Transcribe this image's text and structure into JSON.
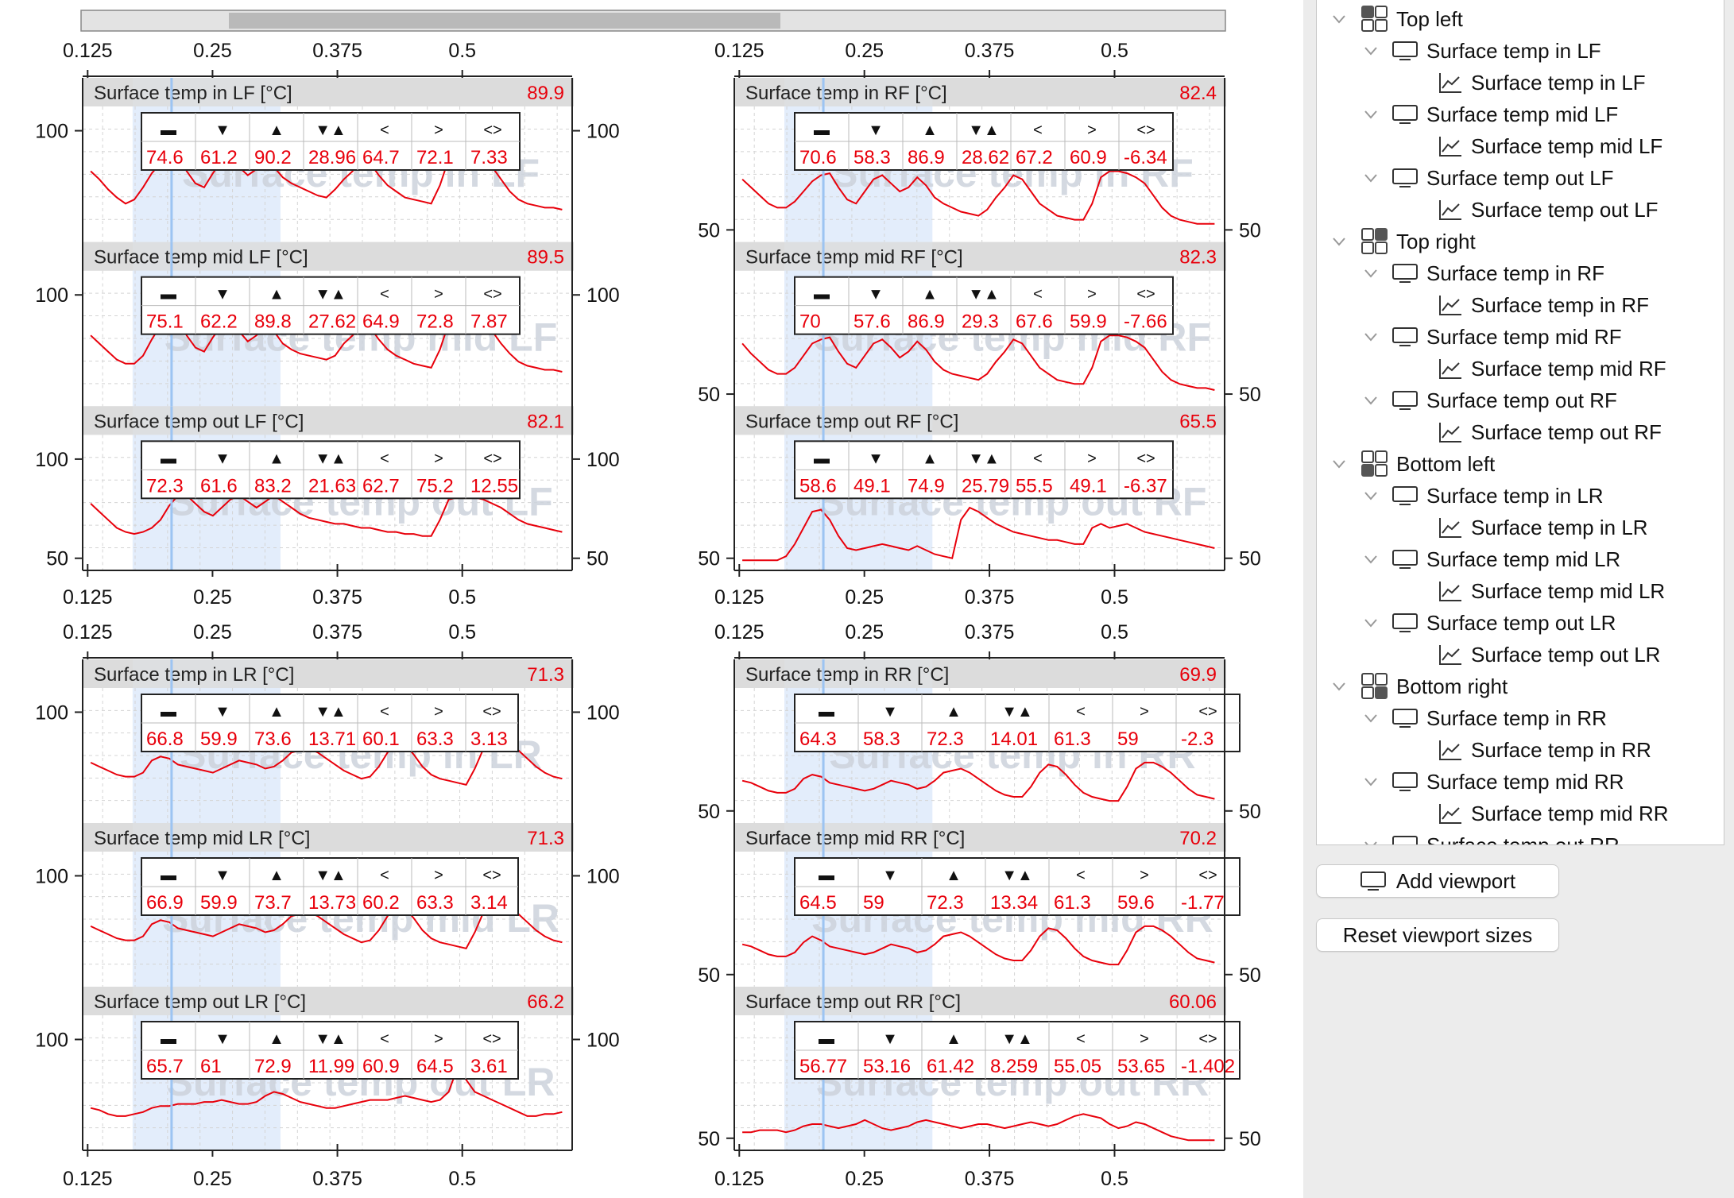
{
  "axis": {
    "x_ticks": [
      "0.125",
      "0.25",
      "0.375",
      "0.5"
    ],
    "y_left_ticks_left_col": [
      "100",
      "50"
    ],
    "y_ticks_right_col": [
      "50"
    ]
  },
  "stats_header": [
    "▬",
    "▼",
    "▲",
    "▼▲",
    "<",
    ">",
    "<>"
  ],
  "watermark_color": "#cdd3dc",
  "trace_color": "#e8000b",
  "value_color": "#e8000b",
  "highlight_color": "#e3edfb",
  "cursor_color": "#9cc4f2",
  "viewports": [
    {
      "name": "Top left",
      "plots": [
        {
          "title": "Surface temp in LF [°C]",
          "watermark": "Surface temp in LF",
          "current": "89.9",
          "stats": [
            "74.6",
            "61.2",
            "90.2",
            "28.96",
            "64.7",
            "72.1",
            "7.33"
          ],
          "y_ticks": [
            "100"
          ],
          "series": [
            80,
            76,
            71,
            67,
            64,
            66,
            72,
            79,
            84,
            87,
            88,
            80,
            74,
            72,
            79,
            85,
            86,
            82,
            78,
            81,
            86,
            82,
            77,
            74,
            72,
            70,
            68,
            67,
            71,
            76,
            80,
            86,
            84,
            78,
            73,
            70,
            67,
            66,
            65,
            64,
            73,
            86,
            88,
            89,
            87,
            85,
            82,
            76,
            70,
            66,
            64,
            63,
            62,
            62,
            61
          ]
        },
        {
          "title": "Surface temp mid LF [°C]",
          "watermark": "Surface temp mid LF",
          "current": "89.5",
          "stats": [
            "75.1",
            "62.2",
            "89.8",
            "27.62",
            "64.9",
            "72.8",
            "7.87"
          ],
          "y_ticks": [
            "100"
          ],
          "series": [
            80,
            76,
            72,
            68,
            66,
            66,
            70,
            78,
            85,
            87,
            88,
            80,
            74,
            72,
            79,
            85,
            86,
            82,
            77,
            80,
            86,
            82,
            76,
            73,
            71,
            70,
            69,
            68,
            70,
            76,
            80,
            86,
            84,
            78,
            73,
            70,
            68,
            66,
            65,
            64,
            73,
            86,
            88,
            89,
            87,
            85,
            82,
            76,
            71,
            67,
            65,
            64,
            63,
            63,
            62
          ]
        },
        {
          "title": "Surface temp out LF [°C]",
          "watermark": "Surface temp out LF",
          "current": "82.1",
          "stats": [
            "72.3",
            "61.6",
            "83.2",
            "21.63",
            "62.7",
            "75.2",
            "12.55"
          ],
          "y_ticks": [
            "100",
            "50"
          ],
          "series": [
            78,
            74,
            70,
            66,
            64,
            63,
            64,
            66,
            70,
            77,
            82,
            82,
            78,
            74,
            72,
            76,
            80,
            82,
            79,
            76,
            79,
            82,
            79,
            76,
            73,
            71,
            70,
            69,
            68,
            68,
            67,
            66,
            66,
            65,
            64,
            64,
            63,
            63,
            62,
            62,
            70,
            80,
            81,
            82,
            81,
            80,
            78,
            76,
            73,
            70,
            68,
            67,
            66,
            65,
            64
          ]
        }
      ]
    },
    {
      "name": "Top right",
      "plots": [
        {
          "title": "Surface temp in RF [°C]",
          "watermark": "Surface temp in RF",
          "current": "82.4",
          "stats": [
            "70.6",
            "58.3",
            "86.9",
            "28.62",
            "67.2",
            "60.9",
            "-6.34"
          ],
          "y_ticks": [
            "50"
          ],
          "series": [
            76,
            72,
            68,
            64,
            62,
            62,
            65,
            70,
            75,
            78,
            79,
            72,
            66,
            64,
            70,
            76,
            78,
            74,
            70,
            72,
            77,
            73,
            67,
            64,
            62,
            60,
            59,
            58,
            61,
            67,
            72,
            78,
            76,
            70,
            64,
            61,
            58,
            57,
            56,
            56,
            64,
            77,
            80,
            80,
            79,
            77,
            74,
            68,
            62,
            58,
            56,
            55,
            54,
            54,
            54
          ]
        },
        {
          "title": "Surface temp mid RF [°C]",
          "watermark": "Surface temp mid RF",
          "current": "82.3",
          "stats": [
            "70",
            "57.6",
            "86.9",
            "29.3",
            "67.6",
            "59.9",
            "-7.66"
          ],
          "y_ticks": [
            "50"
          ],
          "series": [
            76,
            71,
            67,
            63,
            61,
            61,
            64,
            70,
            76,
            78,
            79,
            72,
            66,
            64,
            70,
            76,
            78,
            74,
            69,
            72,
            77,
            73,
            67,
            63,
            61,
            60,
            59,
            58,
            61,
            67,
            72,
            78,
            76,
            70,
            64,
            61,
            58,
            57,
            56,
            56,
            64,
            77,
            80,
            80,
            79,
            77,
            74,
            68,
            62,
            58,
            56,
            55,
            54,
            54,
            53
          ]
        },
        {
          "title": "Surface temp out RF [°C]",
          "watermark": "Surface temp out RF",
          "current": "65.5",
          "stats": [
            "58.6",
            "49.1",
            "74.9",
            "25.79",
            "55.5",
            "49.1",
            "-6.37"
          ],
          "y_ticks": [
            "50"
          ],
          "series": [
            50,
            50,
            50,
            50,
            50,
            52,
            58,
            66,
            74,
            75,
            70,
            62,
            56,
            55,
            56,
            57,
            58,
            57,
            56,
            55,
            57,
            55,
            53,
            52,
            51,
            70,
            76,
            74,
            71,
            68,
            66,
            64,
            63,
            62,
            61,
            60,
            60,
            59,
            58,
            58,
            66,
            68,
            66,
            67,
            68,
            66,
            64,
            63,
            62,
            61,
            60,
            59,
            58,
            57,
            56
          ]
        }
      ]
    },
    {
      "name": "Bottom left",
      "plots": [
        {
          "title": "Surface temp in LR [°C]",
          "watermark": "Surface temp in LR",
          "current": "71.3",
          "stats": [
            "66.8",
            "59.9",
            "73.6",
            "13.71",
            "60.1",
            "63.3",
            "3.13"
          ],
          "y_ticks": [
            "100"
          ],
          "series": [
            75,
            73,
            71,
            69,
            68,
            68,
            70,
            76,
            78,
            77,
            74,
            73,
            72,
            71,
            70,
            72,
            74,
            76,
            75,
            74,
            72,
            73,
            76,
            80,
            81,
            82,
            80,
            77,
            74,
            71,
            69,
            67,
            68,
            73,
            80,
            85,
            84,
            79,
            73,
            69,
            67,
            66,
            65,
            64,
            72,
            82,
            85,
            86,
            84,
            81,
            77,
            73,
            70,
            68,
            67
          ]
        },
        {
          "title": "Surface temp mid LR [°C]",
          "watermark": "Surface temp mid LR",
          "current": "71.3",
          "stats": [
            "66.9",
            "59.9",
            "73.7",
            "13.73",
            "60.2",
            "63.3",
            "3.14"
          ],
          "y_ticks": [
            "100"
          ],
          "series": [
            75,
            73,
            71,
            69,
            68,
            68,
            70,
            76,
            78,
            77,
            74,
            73,
            72,
            71,
            70,
            72,
            74,
            76,
            75,
            74,
            72,
            73,
            76,
            80,
            81,
            82,
            80,
            77,
            74,
            71,
            69,
            67,
            68,
            73,
            80,
            85,
            84,
            79,
            73,
            69,
            67,
            66,
            65,
            64,
            72,
            82,
            85,
            86,
            84,
            81,
            77,
            73,
            70,
            68,
            67
          ]
        },
        {
          "title": "Surface temp out LR [°C]",
          "watermark": "Surface temp out LR",
          "current": "66.2",
          "stats": [
            "65.7",
            "61",
            "72.9",
            "11.99",
            "60.9",
            "64.5",
            "3.61"
          ],
          "y_ticks": [
            "100"
          ],
          "series": [
            66,
            65,
            63,
            62,
            62,
            63,
            64,
            66,
            67,
            67,
            68,
            68,
            68,
            69,
            69,
            70,
            69,
            68,
            68,
            69,
            72,
            74,
            73,
            71,
            69,
            68,
            67,
            66,
            66,
            67,
            68,
            69,
            70,
            70,
            70,
            71,
            72,
            71,
            70,
            69,
            70,
            74,
            86,
            80,
            74,
            72,
            70,
            68,
            66,
            64,
            62,
            62,
            63,
            63,
            64
          ]
        }
      ]
    },
    {
      "name": "Bottom right",
      "plots": [
        {
          "title": "Surface temp in RR [°C]",
          "watermark": "Surface temp in RR",
          "current": "69.9",
          "stats": [
            "64.3",
            "58.3",
            "72.3",
            "14.01",
            "61.3",
            "59",
            "-2.3"
          ],
          "y_ticks": [
            "50"
          ],
          "series": [
            66,
            65,
            63,
            61,
            60,
            60,
            62,
            67,
            69,
            68,
            65,
            64,
            63,
            62,
            61,
            62,
            64,
            66,
            65,
            64,
            62,
            63,
            66,
            70,
            71,
            72,
            70,
            67,
            64,
            61,
            59,
            58,
            58,
            63,
            70,
            74,
            73,
            69,
            64,
            60,
            58,
            57,
            56,
            56,
            63,
            72,
            75,
            75,
            73,
            70,
            66,
            62,
            59,
            58,
            57
          ]
        },
        {
          "title": "Surface temp mid RR [°C]",
          "watermark": "Surface temp mid RR",
          "current": "70.2",
          "stats": [
            "64.5",
            "59",
            "72.3",
            "13.34",
            "61.3",
            "59.6",
            "-1.77"
          ],
          "y_ticks": [
            "50"
          ],
          "series": [
            66,
            65,
            63,
            61,
            60,
            60,
            62,
            67,
            70,
            68,
            65,
            64,
            63,
            62,
            61,
            62,
            64,
            66,
            65,
            64,
            62,
            63,
            66,
            70,
            71,
            72,
            70,
            67,
            64,
            61,
            59,
            58,
            58,
            63,
            70,
            74,
            73,
            69,
            64,
            60,
            58,
            57,
            56,
            56,
            63,
            72,
            75,
            75,
            73,
            70,
            66,
            62,
            59,
            58,
            57
          ]
        },
        {
          "title": "Surface temp out RR [°C]",
          "watermark": "Surface temp out RR",
          "current": "60.06",
          "stats": [
            "56.77",
            "53.16",
            "61.42",
            "8.259",
            "55.05",
            "53.65",
            "-1.402"
          ],
          "y_ticks": [
            "50"
          ],
          "series": [
            54,
            54,
            55,
            55,
            55,
            54,
            55,
            57,
            58,
            58,
            57,
            56,
            57,
            58,
            60,
            58,
            56,
            55,
            56,
            57,
            59,
            60,
            59,
            58,
            57,
            56,
            57,
            58,
            58,
            57,
            56,
            57,
            58,
            59,
            58,
            57,
            58,
            60,
            62,
            63,
            62,
            61,
            58,
            56,
            57,
            59,
            58,
            56,
            54,
            52,
            51,
            50,
            50,
            50,
            50
          ]
        }
      ]
    }
  ],
  "sidebar": {
    "tree": [
      {
        "level": 0,
        "icon": "grid-tl-icon",
        "label": "Top left"
      },
      {
        "level": 1,
        "icon": "monitor-icon",
        "label": "Surface temp in LF"
      },
      {
        "level": 2,
        "icon": "chart-icon",
        "label": "Surface temp in LF"
      },
      {
        "level": 1,
        "icon": "monitor-icon",
        "label": "Surface temp mid LF"
      },
      {
        "level": 2,
        "icon": "chart-icon",
        "label": "Surface temp mid LF"
      },
      {
        "level": 1,
        "icon": "monitor-icon",
        "label": "Surface temp out LF"
      },
      {
        "level": 2,
        "icon": "chart-icon",
        "label": "Surface temp out LF"
      },
      {
        "level": 0,
        "icon": "grid-tr-icon",
        "label": "Top right"
      },
      {
        "level": 1,
        "icon": "monitor-icon",
        "label": "Surface temp in RF"
      },
      {
        "level": 2,
        "icon": "chart-icon",
        "label": "Surface temp in RF"
      },
      {
        "level": 1,
        "icon": "monitor-icon",
        "label": "Surface temp mid RF"
      },
      {
        "level": 2,
        "icon": "chart-icon",
        "label": "Surface temp mid RF"
      },
      {
        "level": 1,
        "icon": "monitor-icon",
        "label": "Surface temp out RF"
      },
      {
        "level": 2,
        "icon": "chart-icon",
        "label": "Surface temp out RF"
      },
      {
        "level": 0,
        "icon": "grid-bl-icon",
        "label": "Bottom left"
      },
      {
        "level": 1,
        "icon": "monitor-icon",
        "label": "Surface temp in LR"
      },
      {
        "level": 2,
        "icon": "chart-icon",
        "label": "Surface temp in LR"
      },
      {
        "level": 1,
        "icon": "monitor-icon",
        "label": "Surface temp mid LR"
      },
      {
        "level": 2,
        "icon": "chart-icon",
        "label": "Surface temp mid LR"
      },
      {
        "level": 1,
        "icon": "monitor-icon",
        "label": "Surface temp out LR"
      },
      {
        "level": 2,
        "icon": "chart-icon",
        "label": "Surface temp out LR"
      },
      {
        "level": 0,
        "icon": "grid-br-icon",
        "label": "Bottom right"
      },
      {
        "level": 1,
        "icon": "monitor-icon",
        "label": "Surface temp in RR"
      },
      {
        "level": 2,
        "icon": "chart-icon",
        "label": "Surface temp in RR"
      },
      {
        "level": 1,
        "icon": "monitor-icon",
        "label": "Surface temp mid RR"
      },
      {
        "level": 2,
        "icon": "chart-icon",
        "label": "Surface temp mid RR"
      },
      {
        "level": 1,
        "icon": "monitor-icon",
        "label": "Surface temp out RR"
      }
    ],
    "add_viewport_label": "Add viewport",
    "reset_label": "Reset viewport sizes"
  }
}
